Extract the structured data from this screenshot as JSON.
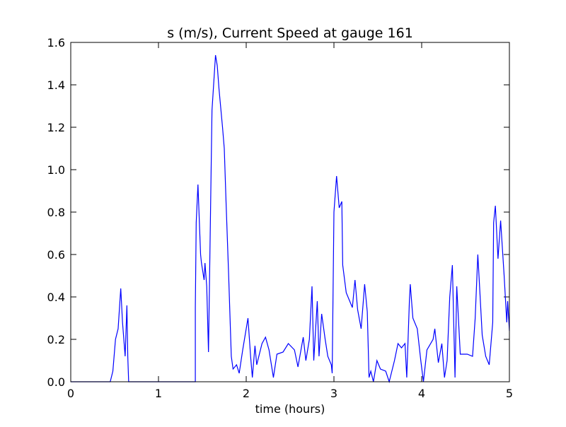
{
  "chart_data": {
    "type": "line",
    "title": "s (m/s), Current Speed at gauge 161",
    "x_label": "time (hours)",
    "x": [
      0,
      0.45,
      0.48,
      0.51,
      0.54,
      0.57,
      0.59,
      0.62,
      0.64,
      0.65,
      0.66,
      1.42,
      1.42,
      1.43,
      1.45,
      1.48,
      1.49,
      1.52,
      1.53,
      1.55,
      1.57,
      1.61,
      1.65,
      1.67,
      1.69,
      1.73,
      1.75,
      1.77,
      1.8,
      1.83,
      1.85,
      1.89,
      1.92,
      1.96,
      2.02,
      2.05,
      2.07,
      2.1,
      2.12,
      2.18,
      2.22,
      2.26,
      2.31,
      2.35,
      2.42,
      2.48,
      2.55,
      2.59,
      2.65,
      2.68,
      2.72,
      2.75,
      2.77,
      2.81,
      2.83,
      2.86,
      2.9,
      2.93,
      2.97,
      2.98,
      3.0,
      3.03,
      3.06,
      3.09,
      3.1,
      3.14,
      3.18,
      3.21,
      3.24,
      3.27,
      3.31,
      3.35,
      3.38,
      3.4,
      3.42,
      3.45,
      3.49,
      3.53,
      3.59,
      3.63,
      3.69,
      3.73,
      3.77,
      3.81,
      3.83,
      3.86,
      3.87,
      3.9,
      3.95,
      3.99,
      4.02,
      4.06,
      4.13,
      4.15,
      4.19,
      4.23,
      4.26,
      4.29,
      4.32,
      4.35,
      4.38,
      4.4,
      4.44,
      4.52,
      4.58,
      4.61,
      4.64,
      4.66,
      4.69,
      4.73,
      4.77,
      4.81,
      4.82,
      4.84,
      4.87,
      4.9,
      4.94,
      4.97,
      4.98,
      5.0
    ],
    "series": [
      {
        "name": "s",
        "color": "#0000ff",
        "values": [
          0,
          0,
          0.05,
          0.2,
          0.25,
          0.44,
          0.28,
          0.12,
          0.36,
          0.12,
          0,
          0,
          0.35,
          0.75,
          0.93,
          0.6,
          0.56,
          0.48,
          0.56,
          0.45,
          0.14,
          1.28,
          1.54,
          1.49,
          1.38,
          1.2,
          1.1,
          0.85,
          0.5,
          0.12,
          0.06,
          0.08,
          0.04,
          0.15,
          0.3,
          0.12,
          0.02,
          0.17,
          0.08,
          0.18,
          0.21,
          0.15,
          0.02,
          0.13,
          0.14,
          0.18,
          0.15,
          0.07,
          0.21,
          0.1,
          0.2,
          0.45,
          0.1,
          0.38,
          0.12,
          0.32,
          0.2,
          0.12,
          0.08,
          0.04,
          0.8,
          0.97,
          0.82,
          0.85,
          0.55,
          0.42,
          0.38,
          0.35,
          0.48,
          0.34,
          0.25,
          0.46,
          0.33,
          0.02,
          0.05,
          0,
          0.1,
          0.06,
          0.05,
          0,
          0.1,
          0.18,
          0.16,
          0.18,
          0.02,
          0.38,
          0.46,
          0.3,
          0.25,
          0.1,
          0,
          0.15,
          0.2,
          0.25,
          0.09,
          0.18,
          0.02,
          0.1,
          0.4,
          0.55,
          0.02,
          0.45,
          0.13,
          0.13,
          0.12,
          0.3,
          0.6,
          0.45,
          0.22,
          0.12,
          0.08,
          0.28,
          0.75,
          0.83,
          0.58,
          0.76,
          0.5,
          0.28,
          0.38,
          0.24
        ]
      }
    ],
    "hline": 0,
    "xlim": [
      0,
      5
    ],
    "xticks": [
      0,
      1,
      2,
      3,
      4,
      5
    ],
    "ylim": [
      0,
      1.6
    ],
    "yticks": [
      {
        "value": 0,
        "label": "0.0"
      },
      0.2,
      0.4,
      0.6,
      0.8,
      {
        "value": 1,
        "label": "1.0"
      },
      1.2,
      1.4,
      1.6
    ]
  }
}
